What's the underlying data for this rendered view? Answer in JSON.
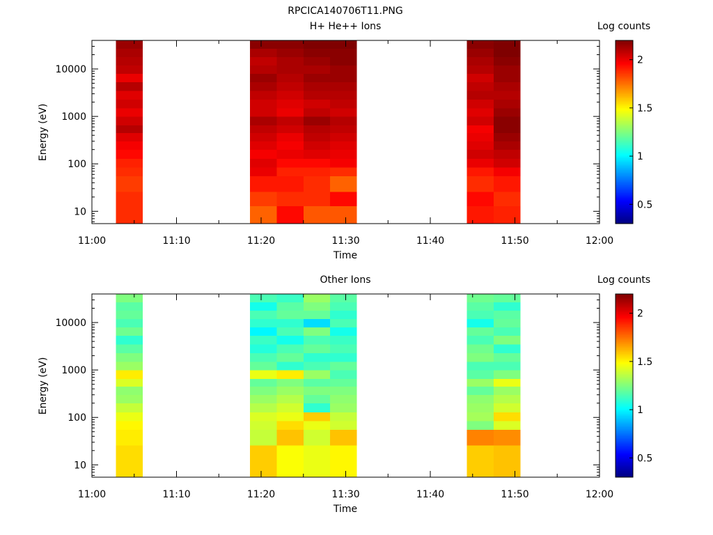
{
  "figure": {
    "title": "RPCICA140706T11.PNG"
  },
  "colormap": [
    "#00007f",
    "#0000ff",
    "#007fff",
    "#00ffff",
    "#7fff7f",
    "#ffff00",
    "#ff7f00",
    "#ff0000",
    "#7f0000"
  ],
  "chart_data": [
    {
      "type": "heatmap",
      "title": "H+ He++ Ions",
      "xlabel": "Time",
      "ylabel": "Energy (eV)",
      "x_ticks": [
        "11:00",
        "11:10",
        "11:20",
        "11:30",
        "11:40",
        "11:50",
        "12:00"
      ],
      "y_ticks": [
        "10",
        "100",
        "1000",
        "10000"
      ],
      "y_scale": "log",
      "ylim": [
        5.5,
        40000
      ],
      "xlim": [
        "11:00",
        "12:00"
      ],
      "colorbar": {
        "label": "Log counts",
        "range": [
          0.3,
          2.2
        ],
        "ticks": [
          "0.5",
          "1",
          "1.5",
          "2"
        ]
      },
      "energy_edges": [
        5.5,
        13,
        26,
        55,
        85,
        130,
        200,
        300,
        450,
        650,
        1000,
        1500,
        2300,
        3500,
        5300,
        8000,
        12000,
        18000,
        27000,
        40000
      ],
      "columns": [
        {
          "start": "11:02:50",
          "end": "11:06:00",
          "log_counts": [
            1.88,
            1.88,
            1.85,
            1.88,
            1.9,
            1.95,
            1.98,
            2.02,
            2.1,
            2.05,
            2.0,
            2.05,
            2.02,
            2.1,
            2.0,
            2.08,
            2.1,
            2.12,
            2.15
          ]
        },
        {
          "start": "11:18:40",
          "end": "11:21:50",
          "log_counts": [
            1.78,
            1.85,
            1.92,
            2.0,
            2.02,
            1.98,
            2.02,
            2.05,
            2.08,
            2.12,
            2.05,
            2.05,
            2.08,
            2.12,
            2.15,
            2.1,
            2.08,
            2.12,
            2.18
          ]
        },
        {
          "start": "11:21:50",
          "end": "11:25:00",
          "log_counts": [
            1.95,
            1.88,
            1.92,
            1.9,
            1.95,
            2.0,
            1.98,
            2.0,
            2.05,
            2.08,
            2.0,
            2.02,
            2.05,
            2.08,
            2.1,
            2.12,
            2.12,
            2.15,
            2.18
          ]
        },
        {
          "start": "11:25:00",
          "end": "11:28:10",
          "log_counts": [
            1.8,
            1.88,
            1.88,
            1.9,
            1.95,
            2.02,
            2.05,
            2.08,
            2.1,
            2.15,
            2.08,
            2.05,
            2.1,
            2.12,
            2.15,
            2.12,
            2.15,
            2.18,
            2.2
          ]
        },
        {
          "start": "11:28:10",
          "end": "11:31:20",
          "log_counts": [
            1.8,
            1.95,
            1.78,
            1.88,
            1.98,
            2.0,
            2.02,
            2.05,
            2.08,
            2.1,
            2.05,
            2.08,
            2.1,
            2.12,
            2.15,
            2.15,
            2.18,
            2.18,
            2.2
          ]
        },
        {
          "start": "11:44:20",
          "end": "11:47:30",
          "log_counts": [
            1.92,
            1.95,
            1.88,
            1.92,
            2.0,
            2.05,
            2.02,
            2.0,
            1.98,
            2.05,
            2.02,
            2.05,
            2.1,
            2.08,
            2.05,
            2.1,
            2.12,
            2.15,
            2.18
          ]
        },
        {
          "start": "11:47:30",
          "end": "11:50:40",
          "log_counts": [
            1.9,
            1.88,
            1.92,
            1.98,
            2.05,
            2.08,
            2.12,
            2.15,
            2.18,
            2.18,
            2.15,
            2.12,
            2.1,
            2.12,
            2.15,
            2.15,
            2.18,
            2.2,
            2.2
          ]
        }
      ]
    },
    {
      "type": "heatmap",
      "title": "Other Ions",
      "xlabel": "Time",
      "ylabel": "Energy (eV)",
      "x_ticks": [
        "11:00",
        "11:10",
        "11:20",
        "11:30",
        "11:40",
        "11:50",
        "12:00"
      ],
      "y_ticks": [
        "10",
        "100",
        "1000",
        "10000"
      ],
      "y_scale": "log",
      "ylim": [
        5.5,
        40000
      ],
      "xlim": [
        "11:00",
        "12:00"
      ],
      "colorbar": {
        "label": "Log counts",
        "range": [
          0.3,
          2.2
        ],
        "ticks": [
          "0.5",
          "1",
          "1.5",
          "2"
        ]
      },
      "energy_edges": [
        5.5,
        13,
        26,
        55,
        85,
        130,
        200,
        300,
        450,
        650,
        1000,
        1500,
        2300,
        3500,
        5300,
        8000,
        12000,
        18000,
        27000,
        40000
      ],
      "columns": [
        {
          "start": "11:02:50",
          "end": "11:06:00",
          "log_counts": [
            1.55,
            1.55,
            1.52,
            1.5,
            1.45,
            1.38,
            1.3,
            1.28,
            1.42,
            1.52,
            1.3,
            1.25,
            1.18,
            1.1,
            1.22,
            1.15,
            1.2,
            1.18,
            1.25
          ]
        },
        {
          "start": "11:18:40",
          "end": "11:21:50",
          "log_counts": [
            1.58,
            1.58,
            1.38,
            1.4,
            1.42,
            1.35,
            1.3,
            1.25,
            1.2,
            1.45,
            1.2,
            1.15,
            1.08,
            1.12,
            1.0,
            1.1,
            1.15,
            1.05,
            1.15
          ]
        },
        {
          "start": "11:21:50",
          "end": "11:25:00",
          "log_counts": [
            1.48,
            1.48,
            1.6,
            1.55,
            1.45,
            1.4,
            1.35,
            1.3,
            1.25,
            1.52,
            1.1,
            1.2,
            1.15,
            1.05,
            1.15,
            1.1,
            1.2,
            1.18,
            1.12
          ]
        },
        {
          "start": "11:25:00",
          "end": "11:28:10",
          "log_counts": [
            1.45,
            1.45,
            1.4,
            1.45,
            1.58,
            1.1,
            1.2,
            1.25,
            1.18,
            1.3,
            1.15,
            1.1,
            1.2,
            1.15,
            1.25,
            0.95,
            1.2,
            1.25,
            1.3
          ]
        },
        {
          "start": "11:28:10",
          "end": "11:31:20",
          "log_counts": [
            1.5,
            1.5,
            1.6,
            1.4,
            1.38,
            1.3,
            1.28,
            1.25,
            1.2,
            1.15,
            1.2,
            1.1,
            1.15,
            1.12,
            1.05,
            1.15,
            1.1,
            1.15,
            1.18
          ]
        },
        {
          "start": "11:44:20",
          "end": "11:47:30",
          "log_counts": [
            1.58,
            1.58,
            1.72,
            1.25,
            1.32,
            1.3,
            1.28,
            1.2,
            1.3,
            1.18,
            1.15,
            1.25,
            1.22,
            1.15,
            1.2,
            1.05,
            1.15,
            1.18,
            1.22
          ]
        },
        {
          "start": "11:47:30",
          "end": "11:50:40",
          "log_counts": [
            1.6,
            1.6,
            1.7,
            1.42,
            1.55,
            1.4,
            1.35,
            1.3,
            1.45,
            1.25,
            1.15,
            1.2,
            1.1,
            1.25,
            1.15,
            1.2,
            1.18,
            1.1,
            1.2
          ]
        }
      ]
    }
  ]
}
